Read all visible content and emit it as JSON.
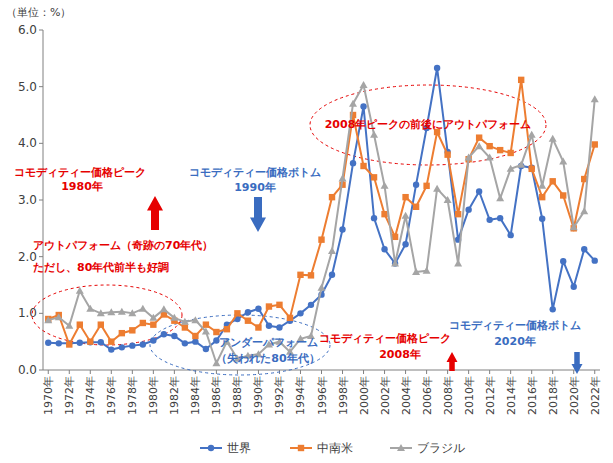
{
  "chart_data": {
    "type": "line",
    "y_label": "（単位：%）",
    "categories": [
      "1970年",
      null,
      "1972年",
      null,
      "1974年",
      null,
      "1976年",
      null,
      "1978年",
      null,
      "1980年",
      null,
      "1982年",
      null,
      "1984年",
      null,
      "1986年",
      null,
      "1988年",
      null,
      "1990年",
      null,
      "1992年",
      null,
      "1994年",
      null,
      "1996年",
      null,
      "1998年",
      null,
      "2000年",
      null,
      "2002年",
      null,
      "2004年",
      null,
      "2006年",
      null,
      "2008年",
      null,
      "2010年",
      null,
      "2012年",
      null,
      "2014年",
      null,
      "2016年",
      null,
      "2018年",
      null,
      "2020年",
      null,
      "2022年"
    ],
    "series": [
      {
        "name": "世界",
        "color": "#4472c4",
        "marker": "circle",
        "values": [
          0.48,
          0.47,
          0.47,
          0.48,
          0.49,
          0.49,
          0.36,
          0.4,
          0.43,
          0.45,
          0.52,
          0.63,
          0.6,
          0.47,
          0.5,
          0.37,
          0.52,
          0.8,
          0.9,
          1.02,
          1.08,
          0.78,
          0.75,
          0.87,
          1.0,
          1.15,
          1.33,
          1.68,
          2.48,
          3.65,
          4.65,
          2.68,
          2.13,
          1.88,
          2.22,
          3.27,
          4.27,
          5.33,
          3.85,
          2.3,
          2.83,
          3.15,
          2.65,
          2.68,
          2.38,
          3.6,
          3.57,
          2.67,
          1.07,
          1.92,
          1.47,
          2.13,
          1.93
        ]
      },
      {
        "name": "中南米",
        "color": "#ed7d31",
        "marker": "square",
        "values": [
          0.9,
          0.97,
          0.45,
          0.8,
          0.5,
          0.8,
          0.5,
          0.65,
          0.7,
          0.83,
          0.8,
          0.98,
          0.87,
          0.75,
          0.6,
          0.8,
          0.67,
          0.72,
          1.0,
          0.87,
          0.75,
          1.12,
          1.15,
          0.92,
          1.68,
          1.67,
          2.3,
          3.05,
          3.27,
          4.5,
          3.6,
          3.4,
          2.75,
          2.35,
          3.05,
          2.88,
          3.25,
          4.2,
          3.8,
          2.75,
          3.72,
          4.1,
          3.95,
          3.88,
          3.83,
          5.12,
          3.55,
          3.05,
          3.33,
          3.08,
          2.5,
          3.37,
          3.98
        ]
      },
      {
        "name": "ブラジル",
        "color": "#a5a5a5",
        "marker": "triangle",
        "values": [
          0.88,
          0.93,
          0.78,
          1.4,
          1.08,
          1.0,
          1.02,
          1.03,
          1.0,
          1.08,
          0.92,
          1.07,
          0.92,
          0.85,
          0.88,
          0.68,
          0.12,
          0.5,
          0.2,
          0.25,
          0.28,
          0.45,
          0.5,
          0.32,
          0.55,
          0.6,
          1.45,
          2.1,
          3.38,
          4.7,
          5.03,
          4.15,
          3.25,
          1.88,
          2.72,
          1.73,
          1.75,
          3.2,
          3.0,
          1.88,
          3.75,
          3.95,
          3.75,
          3.03,
          3.55,
          3.62,
          4.15,
          3.25,
          4.08,
          3.68,
          2.52,
          2.8,
          4.78
        ]
      }
    ],
    "ylim": [
      0,
      6
    ],
    "yticks": [
      {
        "value": 0,
        "label": "0.0"
      },
      {
        "value": 1,
        "label": "1.0"
      },
      {
        "value": 2,
        "label": "2.0"
      },
      {
        "value": 3,
        "label": "3.0"
      },
      {
        "value": 4,
        "label": "4.0"
      },
      {
        "value": 5,
        "label": "5.0"
      },
      {
        "value": 6,
        "label": "6.0"
      }
    ],
    "grid": false,
    "legend": "bottom",
    "annotations": [
      {
        "text": "コモディティー価格ピーク",
        "color": "#e60000"
      },
      {
        "text": "1980年",
        "color": "#e60000"
      },
      {
        "text": "コモディティー価格ボトム",
        "color": "#3a6cc0"
      },
      {
        "text": "1990年",
        "color": "#3a6cc0"
      },
      {
        "text": "アウトパフォーム（奇跡の70年代）",
        "color": "#e60000"
      },
      {
        "text": "ただし、80年代前半も好調",
        "color": "#e60000"
      },
      {
        "text": "アンダーパフォーム",
        "color": "#3a6cc0"
      },
      {
        "text": "（失われた80年代）",
        "color": "#3a6cc0"
      },
      {
        "text": "2008年ピークの前後にアウトパフォーム",
        "color": "#e60000"
      },
      {
        "text": "コモディティー価格ピーク",
        "color": "#e60000"
      },
      {
        "text": "2008年",
        "color": "#e60000"
      },
      {
        "text": "コモディティー価格ボトム",
        "color": "#3a6cc0"
      },
      {
        "text": "2020年",
        "color": "#3a6cc0"
      }
    ]
  }
}
